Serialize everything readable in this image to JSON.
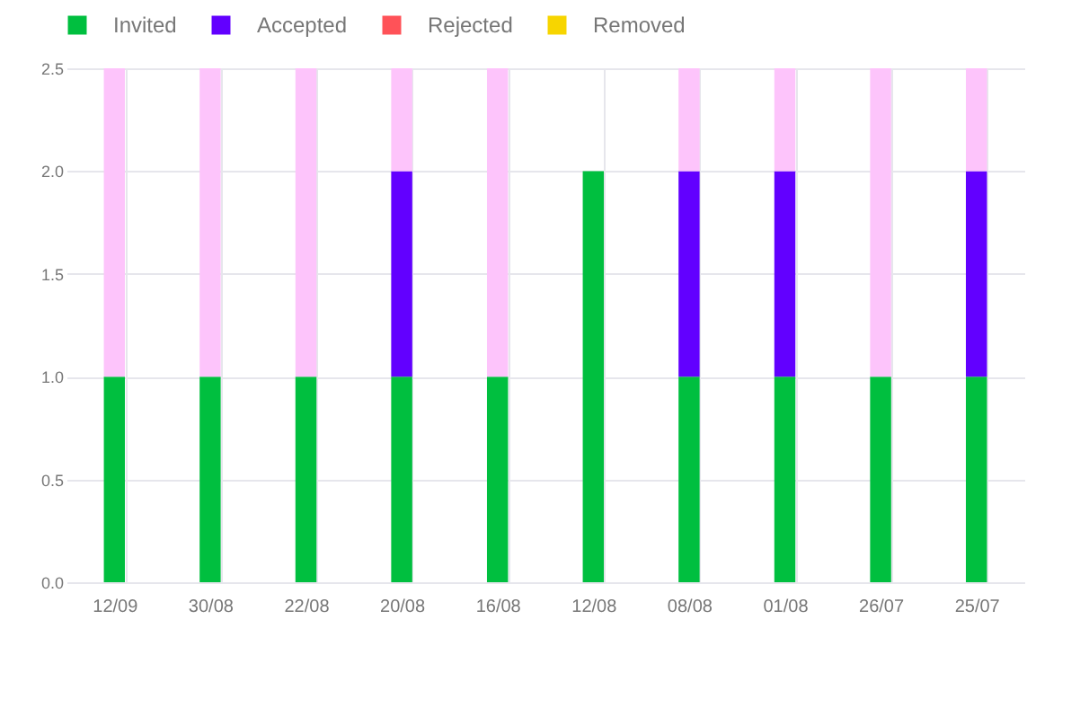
{
  "chart_data": {
    "type": "bar",
    "stacked": true,
    "categories": [
      "12/09",
      "30/08",
      "22/08",
      "20/08",
      "16/08",
      "12/08",
      "08/08",
      "01/08",
      "26/07",
      "25/07"
    ],
    "series": [
      {
        "name": "Invited",
        "color": "#00bf3f",
        "values": [
          1,
          1,
          1,
          1,
          1,
          2,
          1,
          1,
          1,
          1
        ]
      },
      {
        "name": "Accepted",
        "color": "#6200ff",
        "values": [
          0,
          0,
          0,
          1,
          0,
          0,
          1,
          1,
          0,
          1
        ]
      },
      {
        "name": "Rejected",
        "color": "#ff5258",
        "values": [
          0,
          0,
          0,
          0,
          0,
          0,
          0,
          0,
          0,
          0
        ]
      },
      {
        "name": "Removed",
        "color": "#f7d500",
        "values": [
          0,
          0,
          0,
          0,
          0,
          0,
          0,
          0,
          0,
          0
        ]
      },
      {
        "color": "#fdc4fb",
        "values": [
          1.5,
          1.5,
          1.5,
          0.5,
          1.5,
          0,
          0.5,
          0.5,
          1.5,
          0.5
        ]
      }
    ],
    "ylim": [
      0,
      2.5
    ],
    "yticks": [
      {
        "value": 0,
        "label": "0.0"
      },
      {
        "value": 0.5,
        "label": "0.5"
      },
      {
        "value": 1,
        "label": "1.0"
      },
      {
        "value": 1.5,
        "label": "1.5"
      },
      {
        "value": 2,
        "label": "2.0"
      },
      {
        "value": 2.5,
        "label": "2.5"
      }
    ],
    "grid": true,
    "legend": "top left"
  }
}
